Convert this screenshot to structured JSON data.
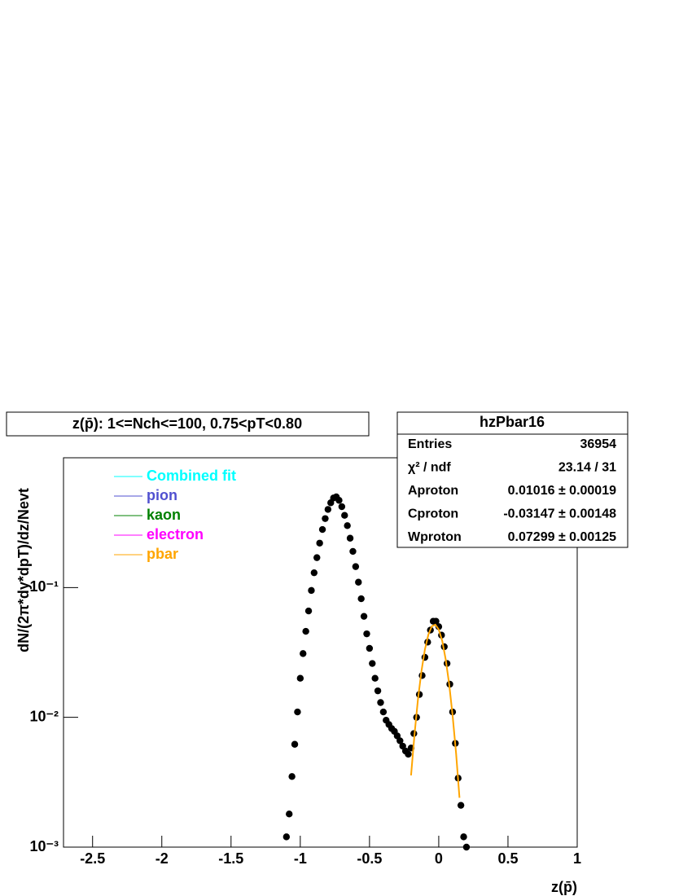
{
  "chart_data": {
    "type": "scatter",
    "title": "z(p̄): 1<=Nch<=100, 0.75<pT<0.80",
    "x_label": "z(p̄)",
    "y_label": "dN/(2π*dy*dpT)/dz/Nevt",
    "log_y": true,
    "xlim": [
      -2.71,
      1
    ],
    "ylim": [
      0.001,
      1
    ],
    "xticks": [
      -2.5,
      -2,
      -1.5,
      -1,
      -0.5,
      0,
      0.5,
      1
    ],
    "yticks": [
      {
        "value": 0.001,
        "label": "10⁻³"
      },
      {
        "value": 0.01,
        "label": "10⁻²"
      },
      {
        "value": 0.1,
        "label": "10⁻¹"
      }
    ],
    "x": [
      -1.1,
      -1.08,
      -1.06,
      -1.04,
      -1.02,
      -1.0,
      -0.98,
      -0.96,
      -0.94,
      -0.92,
      -0.9,
      -0.88,
      -0.86,
      -0.84,
      -0.82,
      -0.8,
      -0.78,
      -0.76,
      -0.74,
      -0.72,
      -0.7,
      -0.68,
      -0.66,
      -0.64,
      -0.62,
      -0.6,
      -0.58,
      -0.56,
      -0.54,
      -0.52,
      -0.5,
      -0.48,
      -0.46,
      -0.44,
      -0.42,
      -0.4,
      -0.38,
      -0.36,
      -0.34,
      -0.32,
      -0.3,
      -0.28,
      -0.26,
      -0.24,
      -0.22,
      -0.2,
      -0.18,
      -0.16,
      -0.14,
      -0.12,
      -0.1,
      -0.08,
      -0.06,
      -0.04,
      -0.02,
      0.0,
      0.02,
      0.04,
      0.06,
      0.08,
      0.1,
      0.12,
      0.14,
      0.16,
      0.18,
      0.2
    ],
    "values": [
      0.0012,
      0.0018,
      0.0035,
      0.0062,
      0.011,
      0.02,
      0.031,
      0.046,
      0.066,
      0.095,
      0.13,
      0.17,
      0.22,
      0.28,
      0.34,
      0.4,
      0.45,
      0.49,
      0.5,
      0.47,
      0.42,
      0.36,
      0.3,
      0.24,
      0.19,
      0.145,
      0.11,
      0.082,
      0.06,
      0.044,
      0.034,
      0.026,
      0.02,
      0.016,
      0.013,
      0.011,
      0.0095,
      0.0088,
      0.0082,
      0.0078,
      0.0072,
      0.0066,
      0.006,
      0.0055,
      0.0052,
      0.0058,
      0.0075,
      0.01,
      0.015,
      0.021,
      0.029,
      0.038,
      0.047,
      0.055,
      0.055,
      0.05,
      0.043,
      0.035,
      0.026,
      0.018,
      0.011,
      0.0063,
      0.0034,
      0.0021,
      0.0012,
      0.001
    ],
    "marker_color": "#000000",
    "legend": [
      {
        "name": "Combined fit",
        "color": "#00ffff"
      },
      {
        "name": "pion",
        "color": "#5050d0"
      },
      {
        "name": "kaon",
        "color": "#008000"
      },
      {
        "name": "electron",
        "color": "#ff00ff"
      },
      {
        "name": "pbar",
        "color": "#ffa500"
      }
    ],
    "fit": {
      "name": "pbar",
      "color": "#ffa500",
      "x": [
        -0.2,
        -0.175,
        -0.15,
        -0.125,
        -0.1,
        -0.075,
        -0.05,
        -0.025,
        0,
        0.025,
        0.05,
        0.075,
        0.1,
        0.125,
        0.15
      ],
      "values": [
        0.00357,
        0.00743,
        0.0138,
        0.0227,
        0.0333,
        0.0434,
        0.0503,
        0.0518,
        0.0475,
        0.0388,
        0.0281,
        0.0181,
        0.0104,
        0.0053,
        0.0024
      ]
    },
    "stats": {
      "name": "hzPbar16",
      "rows": [
        [
          "Entries",
          "36954"
        ],
        [
          "χ² / ndf",
          "23.14 / 31"
        ],
        [
          "Aproton",
          "0.01016 ± 0.00019"
        ],
        [
          "Cproton",
          "-0.03147 ± 0.00148"
        ],
        [
          "Wproton",
          "0.07299 ± 0.00125"
        ]
      ]
    }
  }
}
